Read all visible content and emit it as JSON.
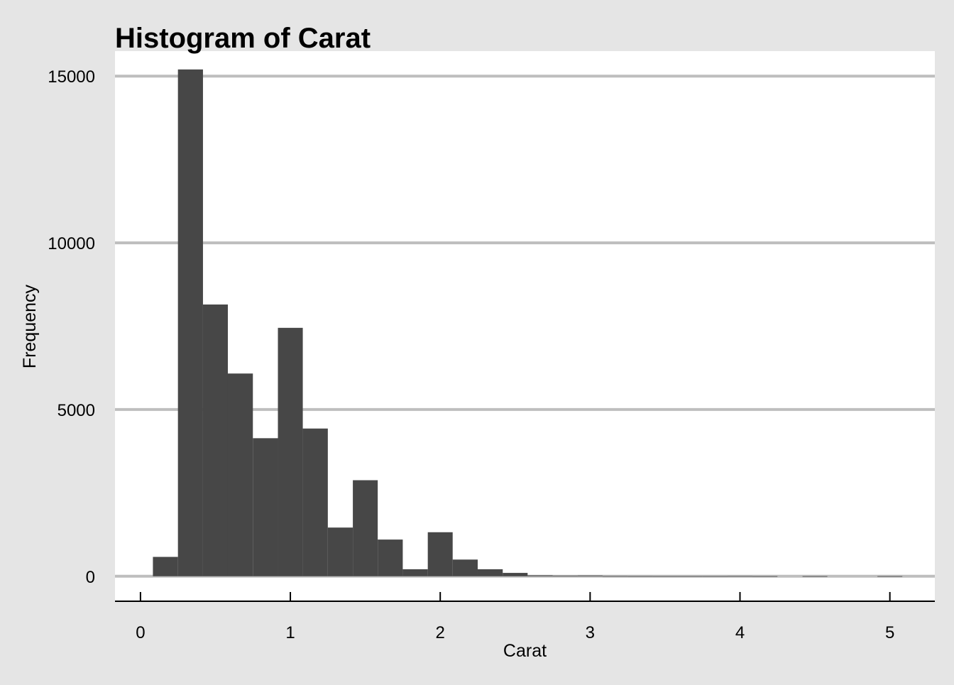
{
  "chart_data": {
    "type": "bar",
    "title": "Histogram of Carat",
    "xlabel": "Carat",
    "ylabel": "Frequency",
    "bin_width": 0.1667,
    "bins": [
      {
        "x0": 0.083,
        "x1": 0.25,
        "count": 580
      },
      {
        "x0": 0.25,
        "x1": 0.417,
        "count": 15200
      },
      {
        "x0": 0.417,
        "x1": 0.583,
        "count": 8150
      },
      {
        "x0": 0.583,
        "x1": 0.75,
        "count": 6080
      },
      {
        "x0": 0.75,
        "x1": 0.917,
        "count": 4140
      },
      {
        "x0": 0.917,
        "x1": 1.083,
        "count": 7450
      },
      {
        "x0": 1.083,
        "x1": 1.25,
        "count": 4430
      },
      {
        "x0": 1.25,
        "x1": 1.417,
        "count": 1460
      },
      {
        "x0": 1.417,
        "x1": 1.583,
        "count": 2880
      },
      {
        "x0": 1.583,
        "x1": 1.75,
        "count": 1100
      },
      {
        "x0": 1.75,
        "x1": 1.917,
        "count": 210
      },
      {
        "x0": 1.917,
        "x1": 2.083,
        "count": 1320
      },
      {
        "x0": 2.083,
        "x1": 2.25,
        "count": 500
      },
      {
        "x0": 2.25,
        "x1": 2.417,
        "count": 210
      },
      {
        "x0": 2.417,
        "x1": 2.583,
        "count": 100
      },
      {
        "x0": 2.583,
        "x1": 2.75,
        "count": 25
      },
      {
        "x0": 2.75,
        "x1": 2.917,
        "count": 15
      },
      {
        "x0": 2.917,
        "x1": 3.083,
        "count": 20
      },
      {
        "x0": 3.083,
        "x1": 3.25,
        "count": 5
      },
      {
        "x0": 3.25,
        "x1": 3.417,
        "count": 3
      },
      {
        "x0": 3.417,
        "x1": 3.583,
        "count": 2
      },
      {
        "x0": 3.583,
        "x1": 3.75,
        "count": 2
      },
      {
        "x0": 3.75,
        "x1": 3.917,
        "count": 2
      },
      {
        "x0": 3.917,
        "x1": 4.083,
        "count": 4
      },
      {
        "x0": 4.083,
        "x1": 4.25,
        "count": 1
      },
      {
        "x0": 4.25,
        "x1": 4.417,
        "count": 0
      },
      {
        "x0": 4.417,
        "x1": 4.583,
        "count": 1
      },
      {
        "x0": 4.583,
        "x1": 4.75,
        "count": 0
      },
      {
        "x0": 4.75,
        "x1": 4.917,
        "count": 0
      },
      {
        "x0": 4.917,
        "x1": 5.083,
        "count": 1
      }
    ],
    "xlim": [
      -0.17,
      5.3
    ],
    "ylim": [
      -750,
      15750
    ],
    "x_ticks": [
      0,
      1,
      2,
      3,
      4,
      5
    ],
    "x_tick_labels": [
      "0",
      "1",
      "2",
      "3",
      "4",
      "5"
    ],
    "y_ticks": [
      0,
      5000,
      10000,
      15000
    ],
    "y_tick_labels": [
      "0",
      "5000",
      "10000",
      "15000"
    ],
    "grid": "horizontal",
    "colors": {
      "background": "#e5e5e5",
      "panel": "#ffffff",
      "bar": "#474747",
      "grid": "#bebebe",
      "axis": "#000000",
      "text": "#000000"
    }
  }
}
